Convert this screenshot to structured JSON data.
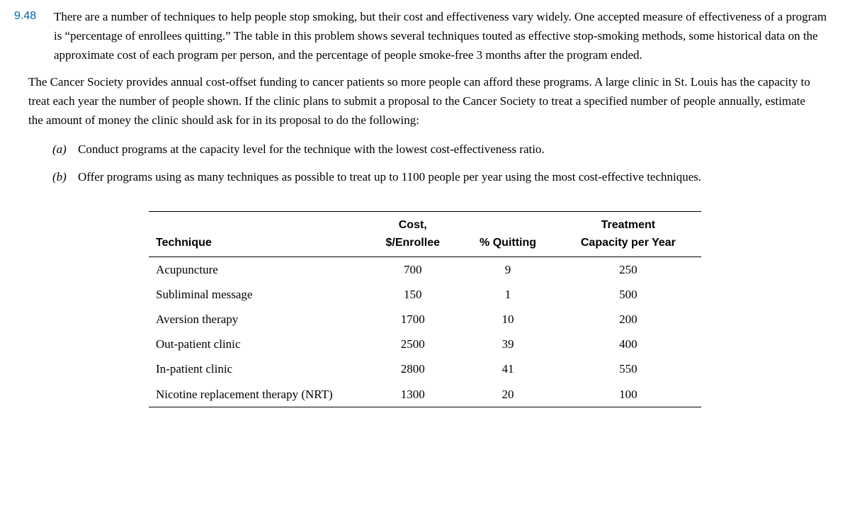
{
  "problem": {
    "number": "9.48",
    "intro": "There are a number of techniques to help people stop smoking, but their cost and effectiveness vary widely. One accepted measure of effectiveness of a program is “percentage of enrollees quitting.” The table in this problem shows several techniques touted as effective stop-smoking methods, some historical data on the approximate cost of each program per person, and the percentage of people smoke-free 3 months after the program ended.",
    "setup": "The Cancer Society provides annual cost-offset funding to cancer patients so more people can afford these programs. A large clinic in St. Louis has the capacity to treat each year the number of people shown. If the clinic plans to submit a proposal to the Cancer Society to treat a specified number of people annually, estimate the amount of money the clinic should ask for in its proposal to do the following:",
    "parts": [
      {
        "label": "(a)",
        "text": "Conduct programs at the capacity level for the technique with the lowest cost-effectiveness ratio."
      },
      {
        "label": "(b)",
        "text": "Offer programs using as many techniques as possible to treat up to 1100 people per year using the most cost-effective techniques."
      }
    ]
  },
  "table": {
    "headers": {
      "technique": "Technique",
      "cost_line1": "Cost,",
      "cost_line2": "$/Enrollee",
      "quitting": "% Quitting",
      "capacity_line1": "Treatment",
      "capacity_line2": "Capacity per Year"
    },
    "rows": [
      {
        "technique": "Acupuncture",
        "cost": "700",
        "quitting": "9",
        "capacity": "250"
      },
      {
        "technique": "Subliminal message",
        "cost": "150",
        "quitting": "1",
        "capacity": "500"
      },
      {
        "technique": "Aversion therapy",
        "cost": "1700",
        "quitting": "10",
        "capacity": "200"
      },
      {
        "technique": "Out-patient clinic",
        "cost": "2500",
        "quitting": "39",
        "capacity": "400"
      },
      {
        "technique": "In-patient clinic",
        "cost": "2800",
        "quitting": "41",
        "capacity": "550"
      },
      {
        "technique": "Nicotine replacement therapy (NRT)",
        "cost": "1300",
        "quitting": "20",
        "capacity": "100"
      }
    ]
  },
  "style": {
    "number_color": "#0066aa",
    "body_font": "Georgia",
    "header_font": "Arial",
    "body_fontsize": 17,
    "header_fontsize": 16,
    "background": "#ffffff",
    "text_color": "#000000"
  }
}
